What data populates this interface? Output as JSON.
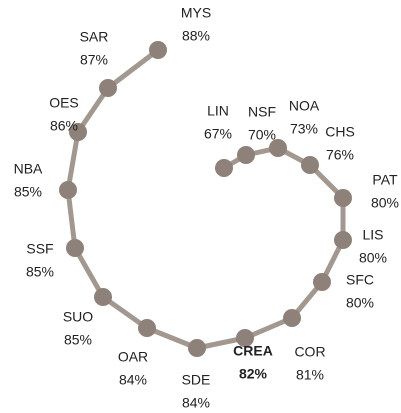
{
  "chart_data": {
    "type": "spiral",
    "categories": [
      "LIN",
      "NSF",
      "NOA",
      "CHS",
      "PAT",
      "LIS",
      "SFC",
      "COR",
      "CREA",
      "SDE",
      "OAR",
      "SUO",
      "SSF",
      "NBA",
      "OES",
      "SAR",
      "MYS"
    ],
    "values": [
      67,
      70,
      73,
      76,
      80,
      80,
      80,
      81,
      82,
      84,
      84,
      85,
      85,
      85,
      86,
      87,
      88
    ],
    "value_labels": [
      "67%",
      "70%",
      "73%",
      "76%",
      "80%",
      "80%",
      "80%",
      "81%",
      "82%",
      "84%",
      "84%",
      "85%",
      "85%",
      "85%",
      "86%",
      "87%",
      "88%"
    ],
    "line_color": "#a39890",
    "marker_color": "#8e817a",
    "highlight_index": 8
  }
}
